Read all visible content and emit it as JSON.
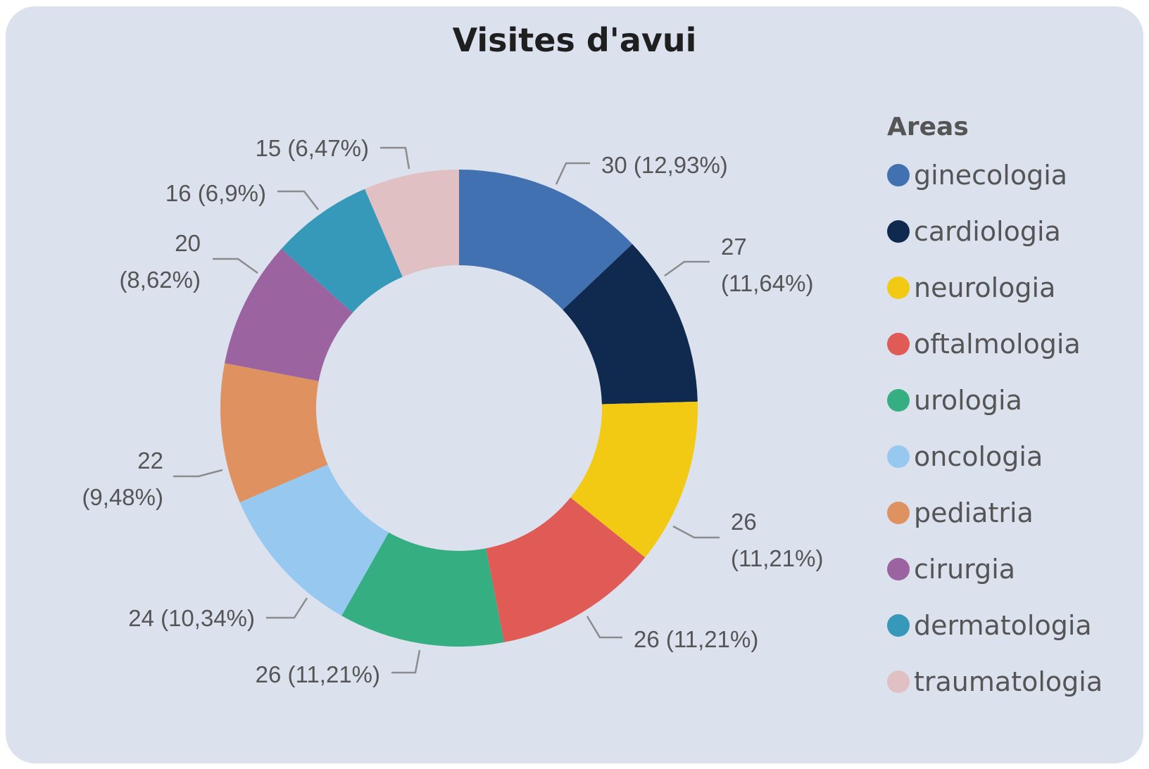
{
  "chart_data": {
    "type": "pie",
    "donut": true,
    "title": "Visites d'avui",
    "legend_title": "Areas",
    "legend_position": "right",
    "categories": [
      "ginecologia",
      "cardiologia",
      "neurologia",
      "oftalmologia",
      "urologia",
      "oncologia",
      "pediatria",
      "cirurgia",
      "dermatologia",
      "traumatologia"
    ],
    "values": [
      30,
      27,
      26,
      26,
      26,
      24,
      22,
      20,
      16,
      15
    ],
    "colors": [
      "#4171b0",
      "#0f2a4e",
      "#f2ca13",
      "#e05b55",
      "#35ae81",
      "#96c8f0",
      "#df9160",
      "#9b64a0",
      "#3699b9",
      "#e0c0c3"
    ],
    "data_labels": [
      [
        "30 (12,93%)"
      ],
      [
        "27",
        "(11,64%)"
      ],
      [
        "26",
        "(11,21%)"
      ],
      [
        "26 (11,21%)"
      ],
      [
        "26 (11,21%)"
      ],
      [
        "24 (10,34%)"
      ],
      [
        "22",
        "(9,48%)"
      ],
      [
        "20",
        "(8,62%)"
      ],
      [
        "16 (6,9%)"
      ],
      [
        "15 (6,47%)"
      ]
    ]
  }
}
